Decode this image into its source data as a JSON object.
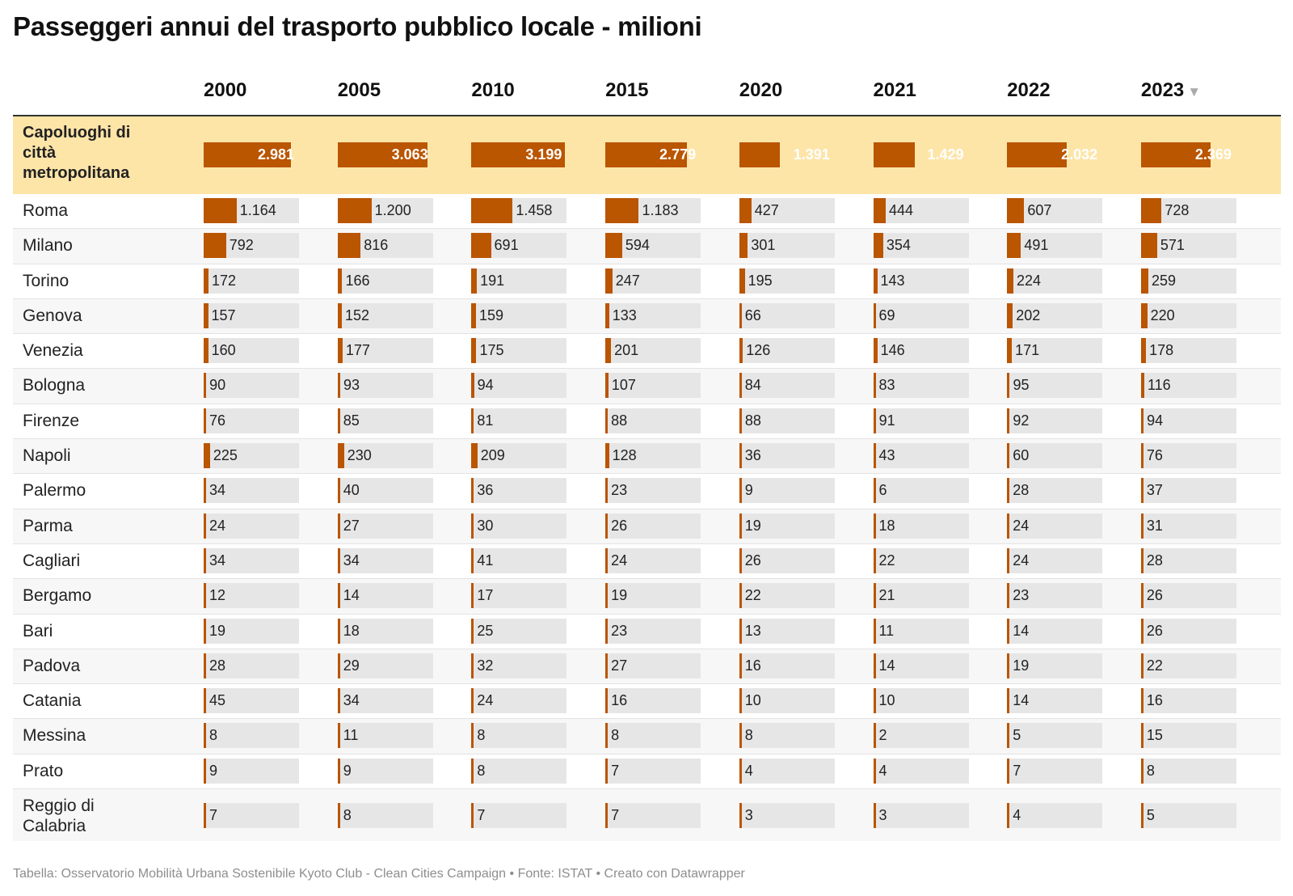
{
  "title": "Passeggeri annui del trasporto pubblico locale - milioni",
  "columns": [
    "2000",
    "2005",
    "2010",
    "2015",
    "2020",
    "2021",
    "2022",
    "2023"
  ],
  "sort_icon": "▼",
  "footer": "Tabella: Osservatorio Mobilità Urbana Sostenibile Kyoto Club - Clean Cities Campaign • Fonte: ISTAT • Creato con Datawrapper",
  "colors": {
    "bar": "#ba5500",
    "track": "#e6e6e6",
    "highlight_row": "#fde5a8"
  },
  "chart_data": {
    "type": "table",
    "columns": [
      "2000",
      "2005",
      "2010",
      "2015",
      "2020",
      "2021",
      "2022",
      "2023"
    ],
    "total": {
      "label": "Capoluoghi di città metropolitana",
      "values": [
        2981,
        3063,
        3199,
        2779,
        1391,
        1429,
        2032,
        2369
      ],
      "labels": [
        "2.981",
        "3.063",
        "3.199",
        "2.779",
        "1.391",
        "1.429",
        "2.032",
        "2.369"
      ]
    },
    "rows": [
      {
        "city": "Roma",
        "values": [
          1164,
          1200,
          1458,
          1183,
          427,
          444,
          607,
          728
        ],
        "labels": [
          "1.164",
          "1.200",
          "1.458",
          "1.183",
          "427",
          "444",
          "607",
          "728"
        ]
      },
      {
        "city": "Milano",
        "values": [
          792,
          816,
          691,
          594,
          301,
          354,
          491,
          571
        ],
        "labels": [
          "792",
          "816",
          "691",
          "594",
          "301",
          "354",
          "491",
          "571"
        ]
      },
      {
        "city": "Torino",
        "values": [
          172,
          166,
          191,
          247,
          195,
          143,
          224,
          259
        ],
        "labels": [
          "172",
          "166",
          "191",
          "247",
          "195",
          "143",
          "224",
          "259"
        ]
      },
      {
        "city": "Genova",
        "values": [
          157,
          152,
          159,
          133,
          66,
          69,
          202,
          220
        ],
        "labels": [
          "157",
          "152",
          "159",
          "133",
          "66",
          "69",
          "202",
          "220"
        ]
      },
      {
        "city": "Venezia",
        "values": [
          160,
          177,
          175,
          201,
          126,
          146,
          171,
          178
        ],
        "labels": [
          "160",
          "177",
          "175",
          "201",
          "126",
          "146",
          "171",
          "178"
        ]
      },
      {
        "city": "Bologna",
        "values": [
          90,
          93,
          94,
          107,
          84,
          83,
          95,
          116
        ],
        "labels": [
          "90",
          "93",
          "94",
          "107",
          "84",
          "83",
          "95",
          "116"
        ]
      },
      {
        "city": "Firenze",
        "values": [
          76,
          85,
          81,
          88,
          88,
          91,
          92,
          94
        ],
        "labels": [
          "76",
          "85",
          "81",
          "88",
          "88",
          "91",
          "92",
          "94"
        ]
      },
      {
        "city": "Napoli",
        "values": [
          225,
          230,
          209,
          128,
          36,
          43,
          60,
          76
        ],
        "labels": [
          "225",
          "230",
          "209",
          "128",
          "36",
          "43",
          "60",
          "76"
        ]
      },
      {
        "city": "Palermo",
        "values": [
          34,
          40,
          36,
          23,
          9,
          6,
          28,
          37
        ],
        "labels": [
          "34",
          "40",
          "36",
          "23",
          "9",
          "6",
          "28",
          "37"
        ]
      },
      {
        "city": "Parma",
        "values": [
          24,
          27,
          30,
          26,
          19,
          18,
          24,
          31
        ],
        "labels": [
          "24",
          "27",
          "30",
          "26",
          "19",
          "18",
          "24",
          "31"
        ]
      },
      {
        "city": "Cagliari",
        "values": [
          34,
          34,
          41,
          24,
          26,
          22,
          24,
          28
        ],
        "labels": [
          "34",
          "34",
          "41",
          "24",
          "26",
          "22",
          "24",
          "28"
        ]
      },
      {
        "city": "Bergamo",
        "values": [
          12,
          14,
          17,
          19,
          22,
          21,
          23,
          26
        ],
        "labels": [
          "12",
          "14",
          "17",
          "19",
          "22",
          "21",
          "23",
          "26"
        ]
      },
      {
        "city": "Bari",
        "values": [
          19,
          18,
          25,
          23,
          13,
          11,
          14,
          26
        ],
        "labels": [
          "19",
          "18",
          "25",
          "23",
          "13",
          "11",
          "14",
          "26"
        ]
      },
      {
        "city": "Padova",
        "values": [
          28,
          29,
          32,
          27,
          16,
          14,
          19,
          22
        ],
        "labels": [
          "28",
          "29",
          "32",
          "27",
          "16",
          "14",
          "19",
          "22"
        ]
      },
      {
        "city": "Catania",
        "values": [
          45,
          34,
          24,
          16,
          10,
          10,
          14,
          16
        ],
        "labels": [
          "45",
          "34",
          "24",
          "16",
          "10",
          "10",
          "14",
          "16"
        ]
      },
      {
        "city": "Messina",
        "values": [
          8,
          11,
          8,
          8,
          8,
          2,
          5,
          15
        ],
        "labels": [
          "8",
          "11",
          "8",
          "8",
          "8",
          "2",
          "5",
          "15"
        ]
      },
      {
        "city": "Prato",
        "values": [
          9,
          9,
          8,
          7,
          4,
          4,
          7,
          8
        ],
        "labels": [
          "9",
          "9",
          "8",
          "7",
          "4",
          "4",
          "7",
          "8"
        ]
      },
      {
        "city": "Reggio di Calabria",
        "values": [
          7,
          8,
          7,
          7,
          3,
          3,
          4,
          5
        ],
        "labels": [
          "7",
          "8",
          "7",
          "7",
          "3",
          "3",
          "4",
          "5"
        ]
      }
    ]
  }
}
